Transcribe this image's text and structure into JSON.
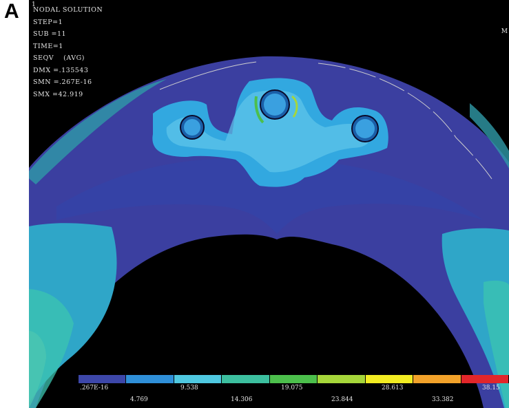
{
  "panel_label": "A",
  "window_number": "1",
  "corner_label": "M",
  "info_lines": [
    "NODAL SOLUTION",
    "STEP=1",
    "SUB =11",
    "TIME=1",
    "SEQV    (AVG)",
    "DMX =.135543",
    "SMN =.267E-16",
    "SMX =42.919"
  ],
  "legend": {
    "colors": [
      "#3d47a9",
      "#2f8fd8",
      "#4fc8e0",
      "#3cbf9f",
      "#4cbf4c",
      "#a6d63a",
      "#f2ec22",
      "#f2a22a",
      "#e2262a"
    ],
    "top_labels": [
      ".267E-16",
      "9.538",
      "19.075",
      "28.613",
      "38.15"
    ],
    "bottom_labels": [
      "4.769",
      "14.306",
      "23.844",
      "33.382"
    ]
  }
}
